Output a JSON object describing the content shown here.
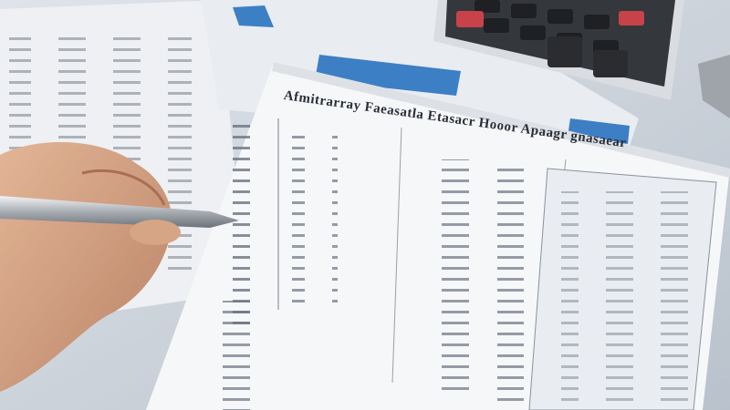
{
  "photo": {
    "subject": "hand holding pen over financial spreadsheets with calculator",
    "heading_text": "Afmitrarray Faeasatla Etasacr Hooor Apaagr gnasaear",
    "colors": {
      "paper": "#f4f5f7",
      "accent_blue": "#3d7fc4",
      "calculator": "#2b2d30",
      "key_red": "#c8424a",
      "skin": "#d9a98a",
      "pen": "#c9ccd0"
    }
  }
}
